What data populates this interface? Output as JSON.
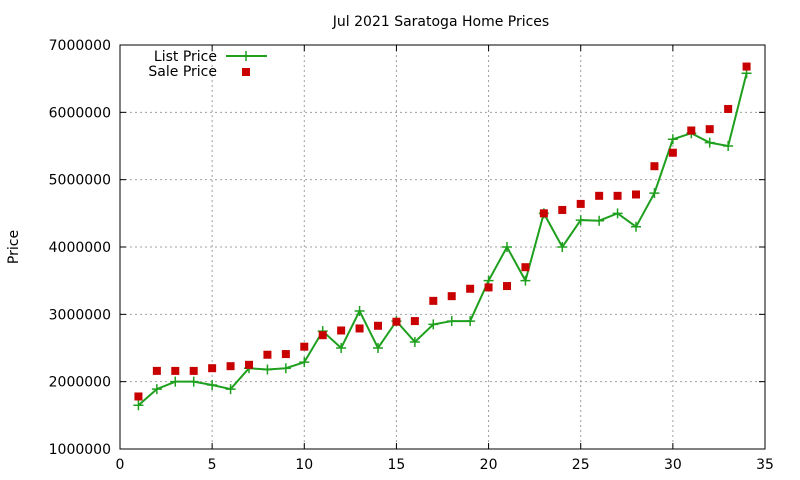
{
  "chart_data": {
    "type": "line",
    "title": "Jul 2021 Saratoga Home Prices",
    "xlabel": "",
    "ylabel": "Price",
    "xlim": [
      0,
      35
    ],
    "ylim": [
      1000000,
      7000000
    ],
    "x_ticks": [
      0,
      5,
      10,
      15,
      20,
      25,
      30,
      35
    ],
    "y_ticks": [
      1000000,
      2000000,
      3000000,
      4000000,
      5000000,
      6000000,
      7000000
    ],
    "grid": true,
    "legend_position": "top-left",
    "series": [
      {
        "name": "List Price",
        "style": "line-with-plus-markers",
        "color": "#1ea01e",
        "x": [
          1,
          2,
          3,
          4,
          5,
          6,
          7,
          8,
          9,
          10,
          11,
          12,
          13,
          14,
          15,
          16,
          17,
          18,
          19,
          20,
          21,
          22,
          23,
          24,
          25,
          26,
          27,
          28,
          29,
          30,
          31,
          32,
          33,
          34
        ],
        "values": [
          1650000,
          1890000,
          2000000,
          2000000,
          1950000,
          1890000,
          2200000,
          2180000,
          2200000,
          2290000,
          2750000,
          2500000,
          3050000,
          2500000,
          2900000,
          2590000,
          2850000,
          2900000,
          2900000,
          3500000,
          4000000,
          3500000,
          4500000,
          4000000,
          4400000,
          4390000,
          4500000,
          4300000,
          4800000,
          5600000,
          5690000,
          5550000,
          5500000,
          6580000
        ]
      },
      {
        "name": "Sale Price",
        "style": "square-markers",
        "color": "#c80000",
        "x": [
          1,
          2,
          3,
          4,
          5,
          6,
          7,
          8,
          9,
          10,
          11,
          12,
          13,
          14,
          15,
          16,
          17,
          18,
          19,
          20,
          21,
          22,
          23,
          24,
          25,
          26,
          27,
          28,
          29,
          30,
          31,
          32,
          33,
          34
        ],
        "values": [
          1780000,
          2160000,
          2160000,
          2160000,
          2200000,
          2230000,
          2250000,
          2400000,
          2410000,
          2520000,
          2690000,
          2760000,
          2790000,
          2830000,
          2890000,
          2900000,
          3200000,
          3270000,
          3380000,
          3400000,
          3420000,
          3700000,
          4500000,
          4550000,
          4640000,
          4760000,
          4760000,
          4780000,
          5200000,
          5400000,
          5730000,
          5750000,
          6050000,
          6680000
        ]
      }
    ]
  }
}
